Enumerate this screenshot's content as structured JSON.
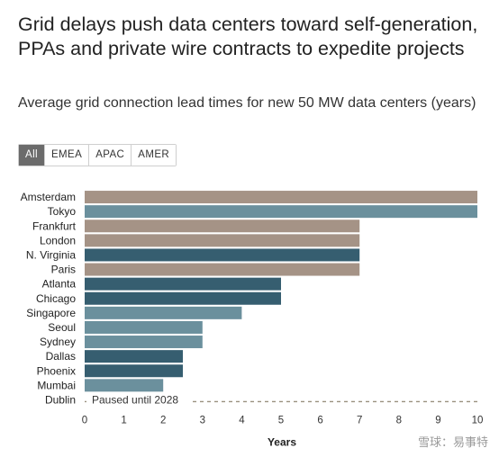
{
  "title": "Grid delays push data centers toward self-generation, PPAs and private wire contracts to expedite projects",
  "subtitle": "Average grid connection lead times for new 50 MW data centers (years)",
  "filters": [
    {
      "label": "All",
      "active": true
    },
    {
      "label": "EMEA",
      "active": false
    },
    {
      "label": "APAC",
      "active": false
    },
    {
      "label": "AMER",
      "active": false
    }
  ],
  "colors": {
    "EMEA": "#a59386",
    "APAC": "#6b909d",
    "AMER": "#365e70",
    "dashed": "#9a917f"
  },
  "chart_data": {
    "type": "bar",
    "orientation": "horizontal",
    "xlabel": "Years",
    "xlim": [
      0,
      10
    ],
    "xticks": [
      0,
      1,
      2,
      3,
      4,
      5,
      6,
      7,
      8,
      9,
      10
    ],
    "grid": false,
    "categories": [
      "Amsterdam",
      "Tokyo",
      "Frankfurt",
      "London",
      "N. Virginia",
      "Paris",
      "Atlanta",
      "Chicago",
      "Singapore",
      "Seoul",
      "Sydney",
      "Dallas",
      "Phoenix",
      "Mumbai",
      "Dublin"
    ],
    "values": [
      10,
      10,
      7,
      7,
      7,
      7,
      5,
      5,
      4,
      3,
      3,
      2.5,
      2.5,
      2,
      null
    ],
    "regions": [
      "EMEA",
      "APAC",
      "EMEA",
      "EMEA",
      "AMER",
      "EMEA",
      "AMER",
      "AMER",
      "APAC",
      "APAC",
      "APAC",
      "AMER",
      "AMER",
      "APAC",
      "EMEA"
    ],
    "annotations": [
      {
        "category": "Dublin",
        "text": "Paused until 2028"
      }
    ]
  },
  "watermark": "雪球：易事特"
}
